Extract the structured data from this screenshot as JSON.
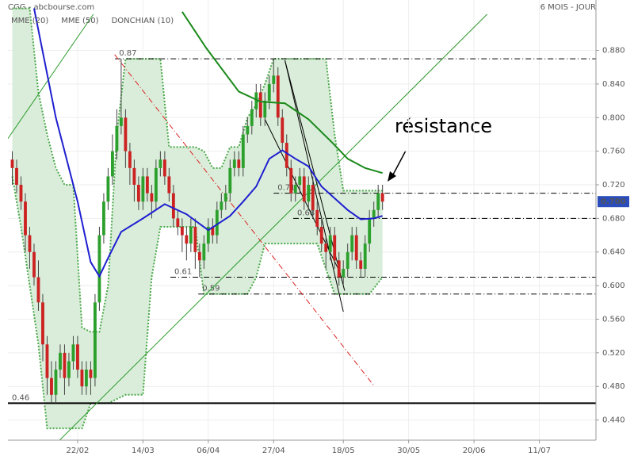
{
  "chart_data": {
    "type": "candlestick",
    "title": "CGG - abcbourse.com",
    "period": "6 MOIS - JOUR",
    "annotation": "résistance",
    "xlim": [
      -1,
      134
    ],
    "xticks": [
      {
        "value": 15,
        "label": "22/02"
      },
      {
        "value": 30,
        "label": "14/03"
      },
      {
        "value": 45,
        "label": "06/04"
      },
      {
        "value": 60,
        "label": "27/04"
      },
      {
        "value": 76,
        "label": "18/05"
      },
      {
        "value": 91,
        "label": "30/05"
      },
      {
        "value": 106,
        "label": "20/06"
      },
      {
        "value": 121,
        "label": "11/07"
      }
    ],
    "ylim": [
      0.416,
      0.94
    ],
    "yticks": [
      {
        "value": 0.44,
        "label": "0.440"
      },
      {
        "value": 0.48,
        "label": "0.480"
      },
      {
        "value": 0.52,
        "label": "0.520"
      },
      {
        "value": 0.56,
        "label": "0.560"
      },
      {
        "value": 0.6,
        "label": "0.600"
      },
      {
        "value": 0.64,
        "label": "0.640"
      },
      {
        "value": 0.68,
        "label": "0.680"
      },
      {
        "value": 0.72,
        "label": "0.720"
      },
      {
        "value": 0.76,
        "label": "0.760"
      },
      {
        "value": 0.8,
        "label": "0.800"
      },
      {
        "value": 0.84,
        "label": "0.840"
      },
      {
        "value": 0.88,
        "label": "0.880"
      }
    ],
    "grid": true,
    "up_color": "#2ca02c",
    "down_color": "#cc2222",
    "x": [
      0,
      1,
      2,
      3,
      4,
      5,
      6,
      7,
      8,
      9,
      10,
      11,
      12,
      13,
      14,
      15,
      16,
      17,
      18,
      19,
      20,
      21,
      22,
      23,
      24,
      25,
      26,
      27,
      28,
      29,
      30,
      31,
      32,
      33,
      34,
      35,
      36,
      37,
      38,
      39,
      40,
      41,
      42,
      43,
      44,
      45,
      46,
      47,
      48,
      49,
      50,
      51,
      52,
      53,
      54,
      55,
      56,
      57,
      58,
      59,
      60,
      61,
      62,
      63,
      64,
      65,
      66,
      67,
      68,
      69,
      70,
      71,
      72,
      73,
      74,
      75,
      76,
      77,
      78,
      79,
      80,
      81,
      82,
      83,
      84,
      85
    ],
    "open": [
      0.75,
      0.74,
      0.72,
      0.7,
      0.66,
      0.64,
      0.61,
      0.58,
      0.53,
      0.49,
      0.47,
      0.5,
      0.52,
      0.49,
      0.51,
      0.53,
      0.5,
      0.48,
      0.5,
      0.49,
      0.58,
      0.66,
      0.7,
      0.73,
      0.76,
      0.79,
      0.8,
      0.76,
      0.74,
      0.72,
      0.7,
      0.73,
      0.71,
      0.7,
      0.74,
      0.75,
      0.73,
      0.71,
      0.68,
      0.67,
      0.66,
      0.65,
      0.67,
      0.64,
      0.63,
      0.65,
      0.67,
      0.66,
      0.69,
      0.7,
      0.71,
      0.74,
      0.75,
      0.74,
      0.78,
      0.79,
      0.81,
      0.83,
      0.8,
      0.82,
      0.84,
      0.85,
      0.8,
      0.77,
      0.74,
      0.71,
      0.72,
      0.73,
      0.7,
      0.72,
      0.69,
      0.67,
      0.65,
      0.64,
      0.66,
      0.63,
      0.61,
      0.62,
      0.64,
      0.66,
      0.63,
      0.62,
      0.65,
      0.68,
      0.69,
      0.71
    ],
    "high": [
      0.76,
      0.75,
      0.73,
      0.71,
      0.67,
      0.65,
      0.63,
      0.59,
      0.54,
      0.51,
      0.51,
      0.53,
      0.53,
      0.52,
      0.54,
      0.54,
      0.51,
      0.51,
      0.51,
      0.59,
      0.67,
      0.71,
      0.74,
      0.78,
      0.81,
      0.87,
      0.81,
      0.77,
      0.75,
      0.73,
      0.74,
      0.74,
      0.72,
      0.75,
      0.76,
      0.76,
      0.74,
      0.72,
      0.69,
      0.68,
      0.67,
      0.68,
      0.68,
      0.65,
      0.66,
      0.68,
      0.68,
      0.7,
      0.71,
      0.72,
      0.75,
      0.76,
      0.76,
      0.79,
      0.8,
      0.82,
      0.84,
      0.84,
      0.83,
      0.85,
      0.87,
      0.86,
      0.81,
      0.78,
      0.75,
      0.73,
      0.74,
      0.74,
      0.73,
      0.73,
      0.7,
      0.68,
      0.66,
      0.67,
      0.67,
      0.64,
      0.63,
      0.65,
      0.67,
      0.67,
      0.64,
      0.66,
      0.69,
      0.7,
      0.72,
      0.72
    ],
    "low": [
      0.72,
      0.71,
      0.69,
      0.64,
      0.62,
      0.6,
      0.57,
      0.51,
      0.47,
      0.46,
      0.46,
      0.49,
      0.47,
      0.48,
      0.5,
      0.49,
      0.47,
      0.47,
      0.47,
      0.48,
      0.57,
      0.65,
      0.69,
      0.72,
      0.75,
      0.78,
      0.74,
      0.72,
      0.7,
      0.69,
      0.69,
      0.7,
      0.68,
      0.69,
      0.73,
      0.72,
      0.7,
      0.67,
      0.66,
      0.64,
      0.63,
      0.64,
      0.62,
      0.61,
      0.62,
      0.64,
      0.65,
      0.65,
      0.68,
      0.69,
      0.7,
      0.73,
      0.73,
      0.73,
      0.77,
      0.78,
      0.8,
      0.79,
      0.79,
      0.81,
      0.83,
      0.79,
      0.76,
      0.73,
      0.7,
      0.7,
      0.71,
      0.69,
      0.69,
      0.68,
      0.66,
      0.64,
      0.62,
      0.63,
      0.62,
      0.6,
      0.6,
      0.61,
      0.63,
      0.62,
      0.61,
      0.61,
      0.64,
      0.67,
      0.68,
      0.69
    ],
    "close": [
      0.74,
      0.72,
      0.7,
      0.66,
      0.64,
      0.61,
      0.58,
      0.53,
      0.49,
      0.47,
      0.5,
      0.52,
      0.49,
      0.51,
      0.53,
      0.5,
      0.48,
      0.5,
      0.49,
      0.58,
      0.66,
      0.7,
      0.73,
      0.76,
      0.79,
      0.8,
      0.76,
      0.74,
      0.72,
      0.7,
      0.73,
      0.71,
      0.7,
      0.74,
      0.75,
      0.73,
      0.71,
      0.68,
      0.67,
      0.66,
      0.65,
      0.67,
      0.64,
      0.63,
      0.65,
      0.67,
      0.66,
      0.69,
      0.7,
      0.71,
      0.74,
      0.75,
      0.74,
      0.78,
      0.79,
      0.81,
      0.83,
      0.8,
      0.82,
      0.84,
      0.85,
      0.8,
      0.77,
      0.74,
      0.71,
      0.72,
      0.73,
      0.7,
      0.72,
      0.69,
      0.67,
      0.65,
      0.64,
      0.66,
      0.63,
      0.61,
      0.62,
      0.64,
      0.66,
      0.63,
      0.62,
      0.65,
      0.68,
      0.69,
      0.71,
      0.7
    ],
    "overlays": [
      {
        "name": "MME (20)",
        "color": "#1f1fd0",
        "x": [
          5,
          10,
          15,
          18,
          20,
          22,
          25,
          30,
          35,
          40,
          45,
          50,
          53,
          56,
          59,
          62,
          65,
          68,
          71,
          74,
          77,
          80,
          83,
          85
        ],
        "values": [
          0.93,
          0.8,
          0.7,
          0.628,
          0.611,
          0.633,
          0.664,
          0.68,
          0.697,
          0.685,
          0.666,
          0.683,
          0.7,
          0.718,
          0.751,
          0.761,
          0.751,
          0.742,
          0.718,
          0.704,
          0.69,
          0.679,
          0.68,
          0.683
        ]
      },
      {
        "name": "MME (50)",
        "color": "#1a8a1a",
        "x": [
          39,
          44.5,
          52,
          57,
          62.6,
          68,
          73.5,
          77,
          81,
          85
        ],
        "values": [
          0.926,
          0.883,
          0.831,
          0.819,
          0.817,
          0.798,
          0.77,
          0.751,
          0.74,
          0.734
        ]
      }
    ],
    "donchian": {
      "name": "DONCHIAN (10)",
      "color": "#4aa84a",
      "fill": "#d6ebd6",
      "x": [
        0,
        2,
        4,
        6,
        8,
        10,
        12,
        14,
        16,
        18,
        20,
        22,
        24,
        26,
        28,
        30,
        32,
        34,
        36,
        38,
        40,
        42,
        44,
        46,
        48,
        50,
        52,
        54,
        56,
        58,
        60,
        62,
        64,
        66,
        68,
        70,
        72,
        74,
        76,
        78,
        80,
        82,
        85
      ],
      "upper": [
        0.93,
        0.93,
        0.93,
        0.83,
        0.78,
        0.74,
        0.72,
        0.72,
        0.55,
        0.545,
        0.545,
        0.6,
        0.78,
        0.87,
        0.87,
        0.87,
        0.87,
        0.87,
        0.765,
        0.765,
        0.765,
        0.765,
        0.76,
        0.74,
        0.74,
        0.765,
        0.765,
        0.8,
        0.815,
        0.84,
        0.87,
        0.87,
        0.87,
        0.87,
        0.87,
        0.87,
        0.87,
        0.78,
        0.713,
        0.713,
        0.713,
        0.713,
        0.713
      ],
      "lower": [
        0.73,
        0.67,
        0.6,
        0.53,
        0.43,
        0.43,
        0.43,
        0.43,
        0.43,
        0.46,
        0.46,
        0.46,
        0.465,
        0.47,
        0.47,
        0.47,
        0.61,
        0.67,
        0.67,
        0.67,
        0.67,
        0.67,
        0.59,
        0.59,
        0.59,
        0.59,
        0.59,
        0.59,
        0.61,
        0.65,
        0.65,
        0.65,
        0.65,
        0.65,
        0.65,
        0.65,
        0.62,
        0.59,
        0.59,
        0.59,
        0.59,
        0.59,
        0.61
      ]
    },
    "levels": [
      {
        "value": 0.87,
        "label": "0.87",
        "x_start": 23.6,
        "style": "dashdot",
        "color": "#000000",
        "label_color": "#cc0000"
      },
      {
        "value": 0.71,
        "label": "0.71",
        "x_start": 60,
        "style": "dashdot",
        "color": "#000000",
        "label_color": "#cc0000"
      },
      {
        "value": 0.68,
        "label": "0.68",
        "x_start": 64.5,
        "style": "dashdot",
        "color": "#000000",
        "label_color": "#cc0000"
      },
      {
        "value": 0.61,
        "label": "0.61",
        "x_start": 36.3,
        "style": "dashdot",
        "color": "#000000",
        "label_color": "#cc0000"
      },
      {
        "value": 0.59,
        "label": "0.59",
        "x_start": 42.7,
        "style": "dashdot",
        "color": "#000000",
        "label_color": "#cc0000"
      },
      {
        "value": 0.46,
        "label": "0.46",
        "x_start": -1,
        "style": "solid",
        "color": "#000000",
        "label_color": "#cc0000"
      }
    ],
    "trendlines": [
      {
        "x": [
          9.9,
          109
        ],
        "y": [
          0.411,
          0.923
        ],
        "color": "#2a9a2a",
        "style": "solid"
      },
      {
        "x": [
          -1,
          18.6
        ],
        "y": [
          0.775,
          0.923
        ],
        "color": "#2a9a2a",
        "style": "solid"
      },
      {
        "x": [
          23.5,
          83
        ],
        "y": [
          0.875,
          0.481
        ],
        "color": "#dd2222",
        "style": "dashdot"
      },
      {
        "x": [
          62.6,
          76.3
        ],
        "y": [
          0.868,
          0.594
        ],
        "color": "#000000",
        "style": "solid"
      },
      {
        "x": [
          62.6,
          76
        ],
        "y": [
          0.868,
          0.569
        ],
        "color": "#000000",
        "style": "solid"
      },
      {
        "x": [
          58,
          75.4
        ],
        "y": [
          0.798,
          0.614
        ],
        "color": "#000000",
        "style": "solid"
      }
    ],
    "last_price": {
      "value": 0.7,
      "label": "0.700"
    }
  }
}
